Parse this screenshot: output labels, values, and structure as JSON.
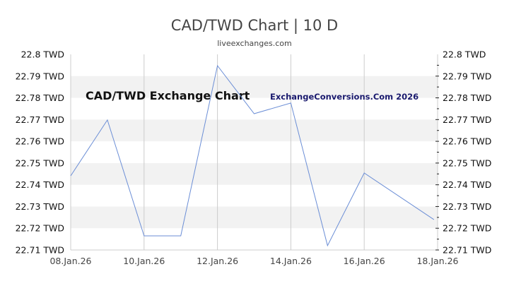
{
  "header": {
    "title": "CAD/TWD Chart | 10 D",
    "subtitle": "liveexchanges.com"
  },
  "watermarks": {
    "left": "CAD/TWD Exchange Chart",
    "right": "ExchangeConversions.Com 2026"
  },
  "colors": {
    "line": "#6b8ed6",
    "band": "#f2f2f2",
    "grid": "#cccccc",
    "axis_text": "#111111",
    "x_text": "#444444"
  },
  "chart_data": {
    "type": "line",
    "title": "CAD/TWD Chart | 10 D",
    "subtitle": "liveexchanges.com",
    "xlabel": "",
    "ylabel": "TWD",
    "x_tick_labels": [
      "08.Jan.26",
      "10.Jan.26",
      "12.Jan.26",
      "14.Jan.26",
      "16.Jan.26",
      "18.Jan.26"
    ],
    "y_tick_labels": [
      "22.8 TWD",
      "22.79 TWD",
      "22.78 TWD",
      "22.77 TWD",
      "22.76 TWD",
      "22.75 TWD",
      "22.74 TWD",
      "22.73 TWD",
      "22.72 TWD",
      "22.71 TWD"
    ],
    "ylim": [
      22.71,
      22.8
    ],
    "grid": "vertical lines every 2 days, alternating horizontal bands",
    "legend": "none",
    "series": [
      {
        "name": "CAD/TWD",
        "x": [
          "08.Jan.26",
          "09.Jan.26",
          "10.Jan.26",
          "11.Jan.26",
          "12.Jan.26",
          "13.Jan.26",
          "14.Jan.26",
          "15.Jan.26",
          "16.Jan.26",
          "17.Jan.26"
        ],
        "day_offsets": [
          0,
          1,
          2,
          3,
          4,
          5,
          6,
          7,
          8,
          9.9
        ],
        "values": [
          22.7441,
          22.7698,
          22.7165,
          22.7165,
          22.7948,
          22.7727,
          22.7776,
          22.712,
          22.7454,
          22.724
        ]
      }
    ],
    "annotations": [
      "CAD/TWD Exchange Chart",
      "ExchangeConversions.Com 2026"
    ]
  }
}
